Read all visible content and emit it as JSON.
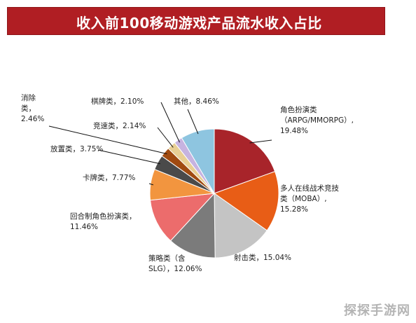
{
  "title": "收入前100移动游戏产品流水收入占比",
  "watermark": "探探手游网",
  "chart_data": {
    "type": "pie",
    "title": "收入前100移动游戏产品流水收入占比",
    "slices": [
      {
        "label": [
          "角色扮演类",
          "（ARPG/MMORPG）,",
          "19.48%"
        ],
        "value": 19.48,
        "color": "#a8242a"
      },
      {
        "label": [
          "多人在线战术竞技",
          "类（MOBA）,",
          "15.28%"
        ],
        "value": 15.28,
        "color": "#e85d16"
      },
      {
        "label": [
          "射击类，15.04%"
        ],
        "value": 15.04,
        "color": "#c4c4c4"
      },
      {
        "label": [
          "策略类（含",
          "SLG），12.06%"
        ],
        "value": 12.06,
        "color": "#7b7b7b"
      },
      {
        "label": [
          "回合制角色扮演类，",
          "11.46%"
        ],
        "value": 11.46,
        "color": "#ec6c6c"
      },
      {
        "label": [
          "卡牌类，7.77%"
        ],
        "value": 7.77,
        "color": "#f2953f"
      },
      {
        "label": [
          "放置类，3.75%"
        ],
        "value": 3.75,
        "color": "#4a4a4a"
      },
      {
        "label": [
          "消除",
          "类，",
          "2.46%"
        ],
        "value": 2.46,
        "color": "#a04a10"
      },
      {
        "label": [
          "竞速类，2.14%"
        ],
        "value": 2.14,
        "color": "#e8cf94"
      },
      {
        "label": [
          "棋牌类，2.10%"
        ],
        "value": 2.1,
        "color": "#c6b3e0"
      },
      {
        "label": [
          "其他，8.46%"
        ],
        "value": 8.46,
        "color": "#8ec5e0"
      }
    ]
  }
}
